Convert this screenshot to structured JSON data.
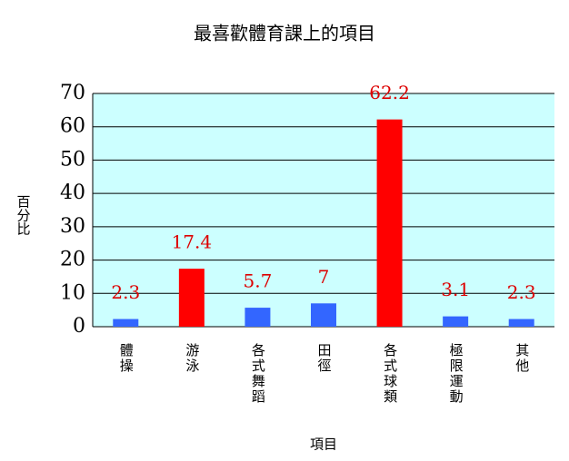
{
  "chart_data": {
    "type": "bar",
    "title": "最喜歡體育課上的項目",
    "x_label": "項目",
    "y_label": "百分比",
    "categories": [
      "體操",
      "游泳",
      "各式舞蹈",
      "田徑",
      "各式球類",
      "極限運動",
      "其他"
    ],
    "values": [
      2.3,
      17.4,
      5.7,
      7,
      62.2,
      3.1,
      2.3
    ],
    "colors": [
      "#3366ff",
      "#ff0000",
      "#3366ff",
      "#3366ff",
      "#ff0000",
      "#3366ff",
      "#3366ff"
    ],
    "value_label_color": "#dd0000",
    "ylim": [
      0,
      70
    ],
    "yticks": [
      0,
      10,
      20,
      30,
      40,
      50,
      60,
      70
    ],
    "grid": true,
    "plot_background": "#ccffff"
  }
}
